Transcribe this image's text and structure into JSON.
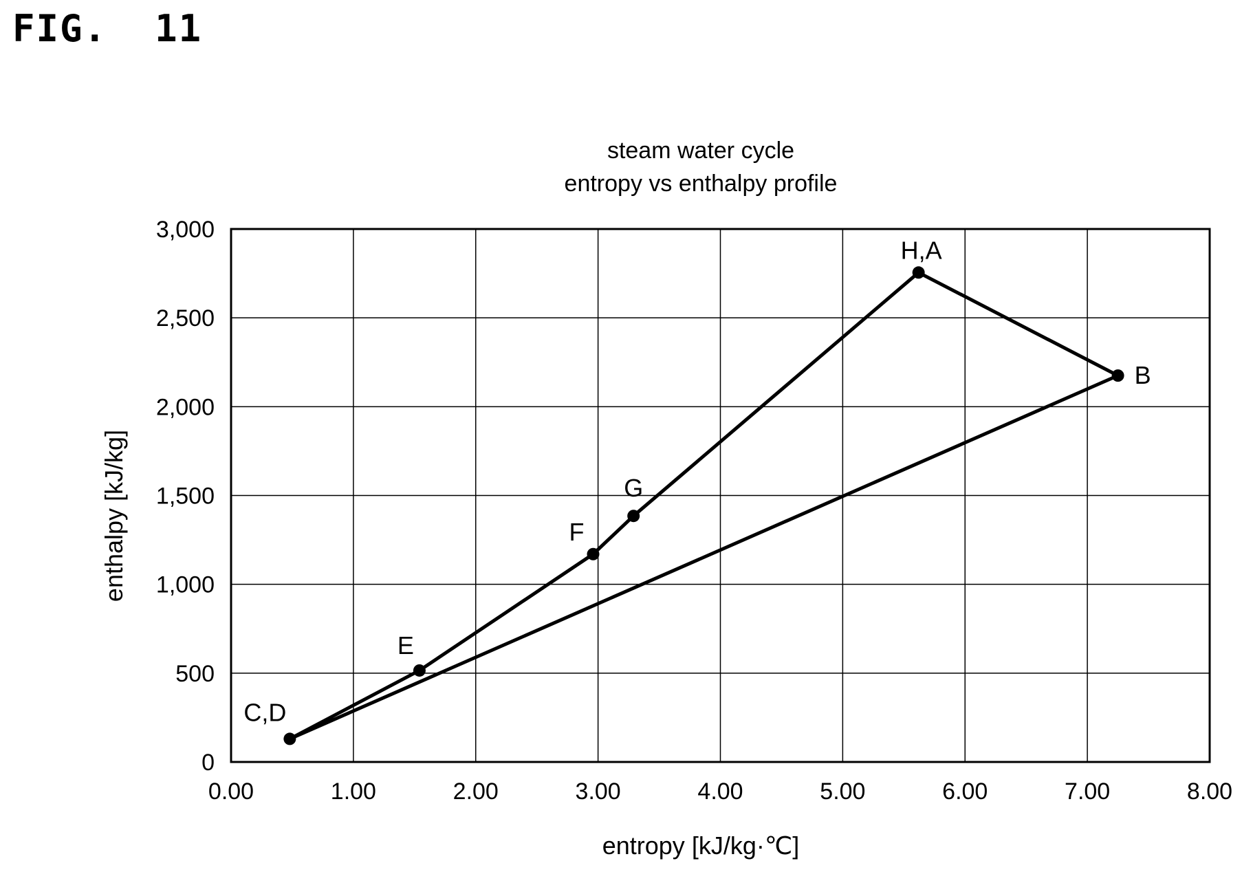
{
  "figure_label": "FIG.  11",
  "chart_data": {
    "type": "scatter",
    "title": "steam water cycle",
    "subtitle": "entropy vs enthalpy profile",
    "xlabel": "entropy [kJ/kg·℃]",
    "ylabel": "enthalpy [kJ/kg]",
    "xlim": [
      0,
      8
    ],
    "ylim": [
      0,
      3000
    ],
    "x_ticks": [
      0,
      1,
      2,
      3,
      4,
      5,
      6,
      7,
      8
    ],
    "x_tick_labels": [
      "0.00",
      "1.00",
      "2.00",
      "3.00",
      "4.00",
      "5.00",
      "6.00",
      "7.00",
      "8.00"
    ],
    "y_ticks": [
      0,
      500,
      1000,
      1500,
      2000,
      2500,
      3000
    ],
    "y_tick_labels": [
      "0",
      "500",
      "1,000",
      "1,500",
      "2,000",
      "2,500",
      "3,000"
    ],
    "grid": true,
    "line_color": "#000000",
    "points": [
      {
        "label": "C,D",
        "x": 0.48,
        "y": 130
      },
      {
        "label": "E",
        "x": 1.54,
        "y": 515
      },
      {
        "label": "F",
        "x": 2.96,
        "y": 1170
      },
      {
        "label": "G",
        "x": 3.29,
        "y": 1385
      },
      {
        "label": "H,A",
        "x": 5.62,
        "y": 2755
      },
      {
        "label": "B",
        "x": 7.25,
        "y": 2175
      }
    ],
    "cycle_path": [
      "C,D",
      "E",
      "F",
      "G",
      "H,A",
      "B",
      "C,D"
    ]
  }
}
